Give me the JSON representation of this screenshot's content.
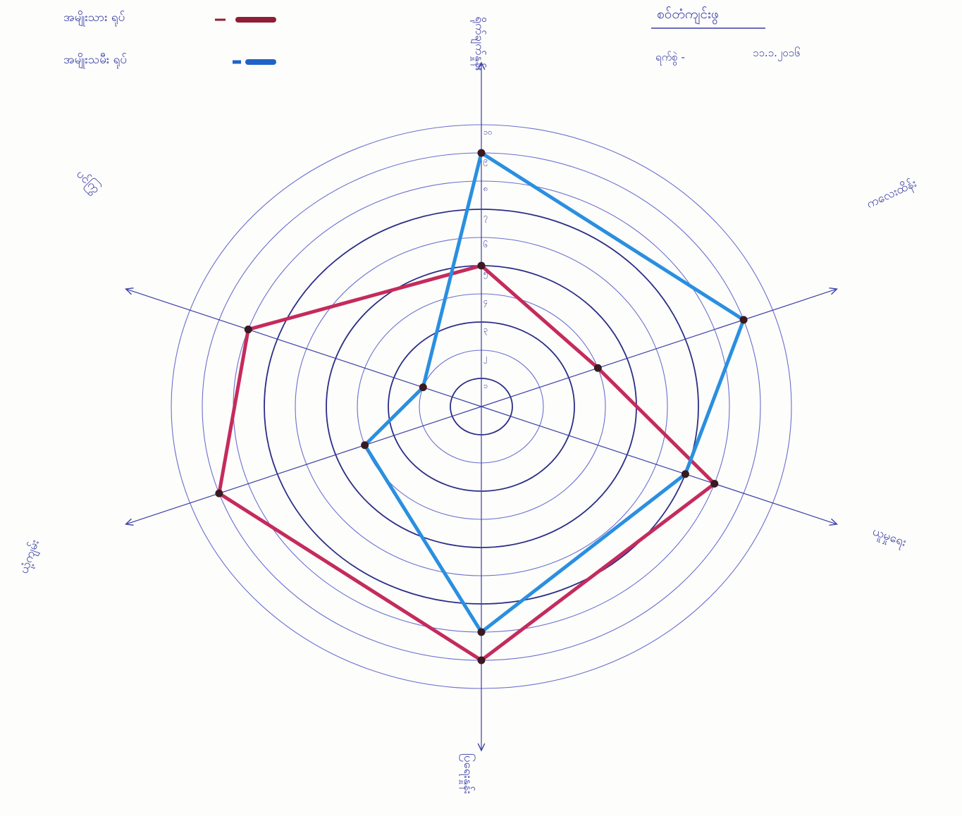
{
  "chart_data": {
    "type": "radar",
    "title": "စဝ်တံကျင်းဖွ",
    "date_label": "ရက်စွဲ -",
    "date_value": "၁၁.၁.၂၀၁၆",
    "axes": [
      "ရိုက်ချက်နှုန်း",
      "ကလေးထိန်း",
      "ယူမှုရေး",
      "ပြရေးနှုန်း",
      "ယုံ့ကျမ်း",
      "ပင်ကြွ"
    ],
    "tick_labels": [
      "၁",
      "၂",
      "၃",
      "၄",
      "၅",
      "၆",
      "၇",
      "၈",
      "၉",
      "၁၀"
    ],
    "range": [
      0,
      10
    ],
    "grid": true,
    "legend_position": "top-left",
    "series": [
      {
        "name": "အမျိုးသား ရုပ်",
        "color": "#c42b5c",
        "values": [
          5,
          4,
          8,
          9,
          9,
          8
        ]
      },
      {
        "name": "အမျိုးသမီး ရုပ်",
        "color": "#2a8fe0",
        "values": [
          9,
          9,
          7,
          8,
          4,
          2
        ]
      }
    ]
  }
}
